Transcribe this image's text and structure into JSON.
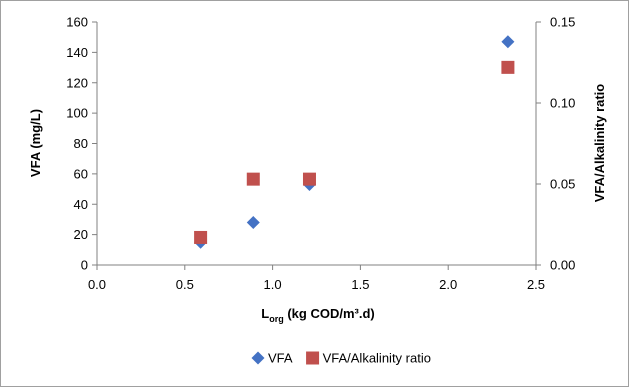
{
  "chart_data": {
    "type": "scatter",
    "title": "",
    "xlabel": {
      "main": "L",
      "sub": "org",
      "rest": " (kg COD/m³.d)"
    },
    "ylabel": "VFA (mg/L)",
    "y2label": "VFA/Alkalinity ratio",
    "xlim": [
      0,
      2.5
    ],
    "ylim": [
      0,
      160
    ],
    "y2lim": [
      0,
      0.15
    ],
    "xticks": [
      "0.0",
      "0.5",
      "1.0",
      "1.5",
      "2.0",
      "2.5"
    ],
    "yticks": [
      "0",
      "20",
      "40",
      "60",
      "80",
      "100",
      "120",
      "140",
      "160"
    ],
    "y2ticks": [
      "0.00",
      "0.05",
      "0.10",
      "0.15"
    ],
    "grid": false,
    "legend_position": "bottom",
    "series": [
      {
        "name": "VFA",
        "axis": "left",
        "marker": "diamond",
        "color": "#4472C4",
        "points": [
          {
            "x": 0.59,
            "y": 15
          },
          {
            "x": 0.89,
            "y": 28
          },
          {
            "x": 1.21,
            "y": 53
          },
          {
            "x": 2.34,
            "y": 147
          }
        ]
      },
      {
        "name": "VFA/Alkalinity ratio",
        "axis": "right",
        "marker": "square",
        "color": "#C0504D",
        "points": [
          {
            "x": 0.59,
            "y": 0.017
          },
          {
            "x": 0.89,
            "y": 0.053
          },
          {
            "x": 1.21,
            "y": 0.053
          },
          {
            "x": 2.34,
            "y": 0.122
          }
        ]
      }
    ]
  }
}
